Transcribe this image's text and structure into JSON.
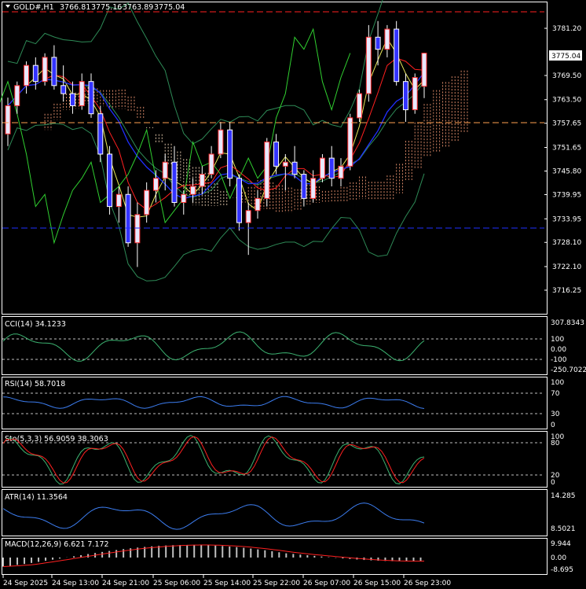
{
  "symbol_header": {
    "symbol": "GOLD#,H1",
    "open": "3766.81",
    "high": "3775.16",
    "low": "3763.89",
    "close": "3775.04"
  },
  "price_axis": {
    "ticks": [
      "3781.20",
      "3775.04",
      "3769.50",
      "3763.50",
      "3757.65",
      "3751.65",
      "3745.80",
      "3739.95",
      "3733.95",
      "3728.10",
      "3722.10",
      "3716.25"
    ],
    "current_price": "3775.04",
    "range": [
      3714.5,
      3790.0
    ]
  },
  "time_axis": {
    "labels": [
      "24 Sep 2025",
      "24 Sep 13:00",
      "24 Sep 21:00",
      "25 Sep 06:00",
      "25 Sep 14:00",
      "25 Sep 22:00",
      "26 Sep 07:00",
      "26 Sep 15:00",
      "26 Sep 23:00"
    ]
  },
  "indicators": {
    "cci": {
      "label": "CCI(14) 34.1233",
      "ticks": [
        "307.8343",
        "100",
        "0.00",
        "-100",
        "-250.7022"
      ]
    },
    "rsi": {
      "label": "RSI(14) 58.7018",
      "ticks": [
        "100",
        "70",
        "30",
        "0"
      ]
    },
    "sto": {
      "label": "Sto(5,3,3) 56.9059 38.3063",
      "ticks": [
        "100",
        "80",
        "20",
        "0"
      ]
    },
    "atr": {
      "label": "ATR(14) 11.3564",
      "ticks": [
        "14.285",
        "8.5021"
      ]
    },
    "macd": {
      "label": "MACD(12,26,9) 6.621 7.172",
      "ticks": [
        "9.944",
        "0.00",
        "-8.695"
      ]
    }
  },
  "colors": {
    "bull_body": "#e8e8ff",
    "bear_body": "#3333ff",
    "tenkan": "#ff2020",
    "kijun": "#2030ff",
    "chikou": "#30d030",
    "ma": "#e8e85a",
    "bollinger": "#2e8b57",
    "cloud_up": "#ffa07a",
    "cloud_down": "#ffe0c0",
    "osc_line": "#3c7df0",
    "sto_signal": "#ff2020",
    "macd_hist": "#c0c0c0",
    "grid_dash": "#c0c0c0"
  },
  "chart_data": {
    "type": "candlestick",
    "symbol": "GOLD#",
    "timeframe": "H1",
    "ohlc_sample": [
      [
        3755,
        3764,
        3752,
        3762
      ],
      [
        3762,
        3768,
        3760,
        3767
      ],
      [
        3767,
        3773,
        3765,
        3772
      ],
      [
        3772,
        3774,
        3766,
        3768
      ],
      [
        3768,
        3775,
        3767,
        3774
      ],
      [
        3774,
        3777,
        3766,
        3767
      ],
      [
        3767,
        3772,
        3763,
        3765
      ],
      [
        3765,
        3768,
        3760,
        3762
      ],
      [
        3762,
        3770,
        3761,
        3768
      ],
      [
        3768,
        3770,
        3759,
        3760
      ],
      [
        3760,
        3762,
        3748,
        3750
      ],
      [
        3750,
        3752,
        3735,
        3737
      ],
      [
        3737,
        3742,
        3733,
        3740
      ],
      [
        3740,
        3742,
        3727,
        3728
      ],
      [
        3728,
        3738,
        3722,
        3735
      ],
      [
        3735,
        3743,
        3733,
        3741
      ],
      [
        3741,
        3746,
        3738,
        3744
      ],
      [
        3744,
        3750,
        3741,
        3748
      ],
      [
        3748,
        3752,
        3737,
        3738
      ],
      [
        3738,
        3741,
        3735,
        3740
      ],
      [
        3740,
        3744,
        3738,
        3742
      ],
      [
        3742,
        3747,
        3740,
        3745
      ],
      [
        3745,
        3752,
        3744,
        3750
      ],
      [
        3750,
        3758,
        3749,
        3756
      ],
      [
        3756,
        3758,
        3742,
        3744
      ],
      [
        3744,
        3745,
        3731,
        3733
      ],
      [
        3733,
        3738,
        3725,
        3736
      ],
      [
        3736,
        3741,
        3734,
        3739
      ],
      [
        3739,
        3754,
        3737,
        3753
      ],
      [
        3753,
        3755,
        3745,
        3747
      ],
      [
        3747,
        3750,
        3741,
        3748
      ],
      [
        3748,
        3752,
        3744,
        3745
      ],
      [
        3745,
        3746,
        3737,
        3739
      ],
      [
        3739,
        3746,
        3738,
        3744
      ],
      [
        3744,
        3750,
        3743,
        3749
      ],
      [
        3749,
        3752,
        3742,
        3744
      ],
      [
        3744,
        3749,
        3742,
        3747
      ],
      [
        3747,
        3760,
        3746,
        3759
      ],
      [
        3759,
        3766,
        3758,
        3765
      ],
      [
        3765,
        3782,
        3763,
        3779
      ],
      [
        3779,
        3783,
        3772,
        3776
      ],
      [
        3776,
        3782,
        3774,
        3781
      ],
      [
        3781,
        3783,
        3767,
        3768
      ],
      [
        3768,
        3770,
        3758,
        3761
      ],
      [
        3761,
        3770,
        3760,
        3769
      ],
      [
        3766.81,
        3775.16,
        3763.89,
        3775.04
      ]
    ],
    "price_range": [
      3714.5,
      3790.0
    ],
    "current_price": 3775.04,
    "indicator_values": {
      "CCI(14)": 34.1233,
      "RSI(14)": 58.7018,
      "Sto_main": 56.9059,
      "Sto_signal": 38.3063,
      "ATR(14)": 11.3564,
      "MACD_main": 6.621,
      "MACD_signal": 7.172
    }
  }
}
